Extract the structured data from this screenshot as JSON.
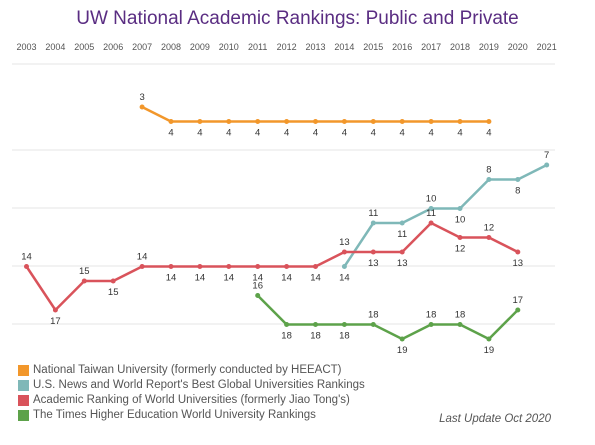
{
  "chart_data": {
    "type": "line",
    "title": "UW National Academic Rankings: Public and Private",
    "x": [
      2003,
      2004,
      2005,
      2006,
      2007,
      2008,
      2009,
      2010,
      2011,
      2012,
      2013,
      2014,
      2015,
      2016,
      2017,
      2018,
      2019,
      2020,
      2021
    ],
    "y_inverted": true,
    "grid": true,
    "legend_position": "bottom-left",
    "series": [
      {
        "name": "National Taiwan University (formerly conducted by HEEACT)",
        "color": "#f2972b",
        "points": [
          [
            2007,
            3
          ],
          [
            2008,
            4
          ],
          [
            2009,
            4
          ],
          [
            2010,
            4
          ],
          [
            2011,
            4
          ],
          [
            2012,
            4
          ],
          [
            2013,
            4
          ],
          [
            2014,
            4
          ],
          [
            2015,
            4
          ],
          [
            2016,
            4
          ],
          [
            2017,
            4
          ],
          [
            2018,
            4
          ],
          [
            2019,
            4
          ]
        ]
      },
      {
        "name": "U.S. News and World Report's Best Global Universities Rankings",
        "color": "#7fb8b8",
        "points": [
          [
            2014,
            14
          ],
          [
            2015,
            11
          ],
          [
            2016,
            11
          ],
          [
            2017,
            10
          ],
          [
            2018,
            10
          ],
          [
            2019,
            8
          ],
          [
            2020,
            8
          ],
          [
            2021,
            7
          ]
        ]
      },
      {
        "name": "Academic Ranking of World Universities (formerly Jiao Tong's)",
        "color": "#d9535b",
        "points": [
          [
            2003,
            14
          ],
          [
            2004,
            17
          ],
          [
            2005,
            15
          ],
          [
            2006,
            15
          ],
          [
            2007,
            14
          ],
          [
            2008,
            14
          ],
          [
            2009,
            14
          ],
          [
            2010,
            14
          ],
          [
            2011,
            14
          ],
          [
            2012,
            14
          ],
          [
            2013,
            14
          ],
          [
            2014,
            13
          ],
          [
            2015,
            13
          ],
          [
            2016,
            13
          ],
          [
            2017,
            11
          ],
          [
            2018,
            12
          ],
          [
            2019,
            12
          ],
          [
            2020,
            13
          ]
        ]
      },
      {
        "name": "The Times Higher Education World University Rankings",
        "color": "#5da24a",
        "points": [
          [
            2011,
            16
          ],
          [
            2012,
            18
          ],
          [
            2013,
            18
          ],
          [
            2014,
            18
          ],
          [
            2015,
            18
          ],
          [
            2016,
            19
          ],
          [
            2017,
            18
          ],
          [
            2018,
            18
          ],
          [
            2019,
            19
          ],
          [
            2020,
            17
          ]
        ]
      }
    ],
    "footnote": "Last Update Oct 2020"
  }
}
